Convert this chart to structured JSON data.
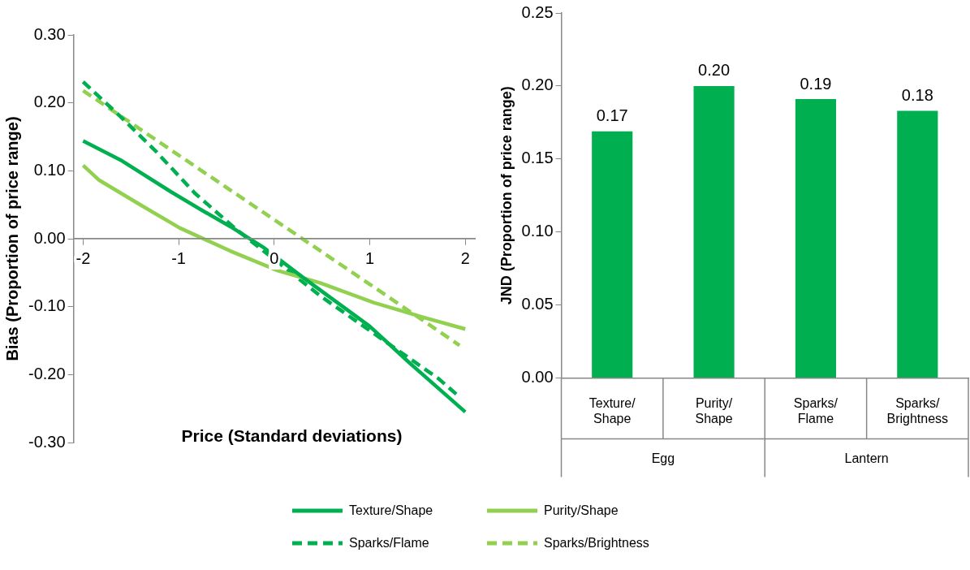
{
  "chart_data": [
    {
      "type": "line",
      "xlabel": "Price (Standard deviations)",
      "ylabel": "Bias (Proportion of price range)",
      "xlim": [
        -2.1,
        2.1
      ],
      "xticks": [
        -2,
        -1,
        0,
        1,
        2
      ],
      "ylim": [
        -0.3,
        0.3
      ],
      "yticks": [
        {
          "value": -0.3,
          "label": "-0.30"
        },
        {
          "value": -0.2,
          "label": "-0.20"
        },
        {
          "value": -0.1,
          "label": "-0.10"
        },
        {
          "value": 0,
          "label": "0.00"
        },
        {
          "value": 0.1,
          "label": "0.10"
        },
        {
          "value": 0.2,
          "label": "0.20"
        },
        {
          "value": 0.3,
          "label": "0.30"
        }
      ],
      "grid": false,
      "legend": "bottom",
      "marker": "none",
      "series": [
        {
          "name": "Texture/Shape",
          "color": "#00b050",
          "line_style": "solid",
          "x": [
            -2,
            -1.61,
            -1.08,
            -0.77,
            -0.46,
            -0.1,
            0.32,
            1.0,
            1.41,
            2
          ],
          "values": [
            0.144,
            0.116,
            0.069,
            0.043,
            0.018,
            -0.014,
            -0.059,
            -0.129,
            -0.182,
            -0.255
          ]
        },
        {
          "name": "Purity/Shape",
          "color": "#92d050",
          "line_style": "solid",
          "x": [
            -2,
            -1.83,
            -1.39,
            -0.99,
            -0.46,
            0.04,
            0.48,
            1.04,
            1.57,
            2
          ],
          "values": [
            0.108,
            0.086,
            0.049,
            0.016,
            -0.018,
            -0.047,
            -0.065,
            -0.094,
            -0.116,
            -0.133
          ]
        },
        {
          "name": "Sparks/Flame",
          "color": "#00b050",
          "line_style": "dashed",
          "x": [
            -2,
            -1.61,
            -1.24,
            -0.83,
            -0.4,
            0.15,
            0.48,
            1.1,
            1.72,
            1.94
          ],
          "values": [
            0.231,
            0.18,
            0.129,
            0.067,
            0.014,
            -0.047,
            -0.084,
            -0.145,
            -0.206,
            -0.233
          ]
        },
        {
          "name": "Sparks/Brightness",
          "color": "#92d050",
          "line_style": "dashed",
          "x": [
            -2,
            -1,
            0,
            1,
            1.94
          ],
          "values": [
            0.218,
            0.123,
            0.028,
            -0.067,
            -0.157
          ]
        }
      ]
    },
    {
      "type": "bar",
      "ylabel": "JND (Proportion of price range)",
      "categories": [
        "Texture/Shape",
        "Purity/Shape",
        "Sparks/Flame",
        "Sparks/Brightness"
      ],
      "values": [
        0.169,
        0.2,
        0.191,
        0.183
      ],
      "value_labels": [
        "0.17",
        "0.20",
        "0.19",
        "0.18"
      ],
      "color": "#00b050",
      "ylim": [
        0,
        0.25
      ],
      "yticks": [
        {
          "value": 0,
          "label": "0.00"
        },
        {
          "value": 0.05,
          "label": "0.05"
        },
        {
          "value": 0.1,
          "label": "0.10"
        },
        {
          "value": 0.15,
          "label": "0.15"
        },
        {
          "value": 0.2,
          "label": "0.20"
        },
        {
          "value": 0.25,
          "label": "0.25"
        }
      ],
      "grid": false,
      "annotations": [
        "Egg",
        "Lantern"
      ]
    }
  ]
}
